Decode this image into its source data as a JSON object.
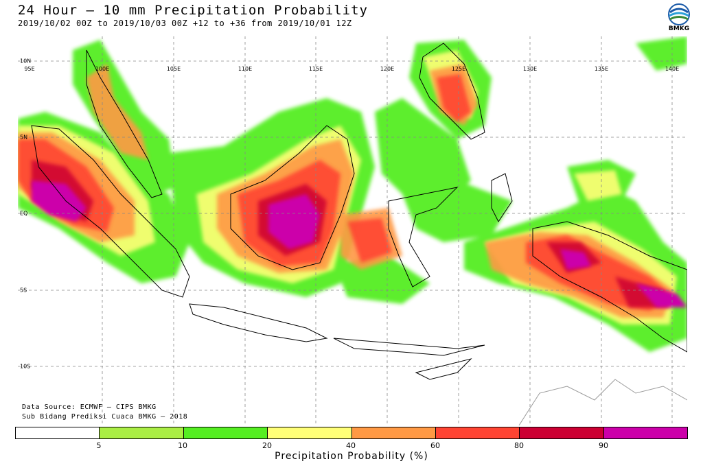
{
  "header": {
    "title": "24 Hour – 10 mm Precipitation Probability",
    "subtitle": "2019/10/02 00Z to 2019/10/03 00Z +12 to +36 from 2019/10/01 12Z",
    "logo_text": "BMKG"
  },
  "map": {
    "region": "Indonesia",
    "lon_labels": [
      "95E",
      "100E",
      "105E",
      "110E",
      "115E",
      "120E",
      "125E",
      "130E",
      "135E",
      "140E"
    ],
    "lat_labels": [
      "10N",
      "5N",
      "EQ",
      "5S",
      "10S"
    ],
    "colors": {
      "ocean": "#ffffff",
      "coast": "#000000",
      "gridline": "#888888",
      "neighbor_coast": "#9a9a9a"
    }
  },
  "credits": {
    "line1": "Data Source: ECMWF – CIPS BMKG",
    "line2": "Sub Bidang Prediksi Cuaca BMKG – 2018"
  },
  "colorbar": {
    "label": "Precipitation Probability (%)",
    "ticks": [
      "5",
      "10",
      "20",
      "40",
      "60",
      "80",
      "90"
    ],
    "colors": [
      "#ffffff",
      "#aaee44",
      "#55ee22",
      "#ffff77",
      "#ff9944",
      "#ff4433",
      "#cc0033",
      "#cc00aa"
    ]
  }
}
